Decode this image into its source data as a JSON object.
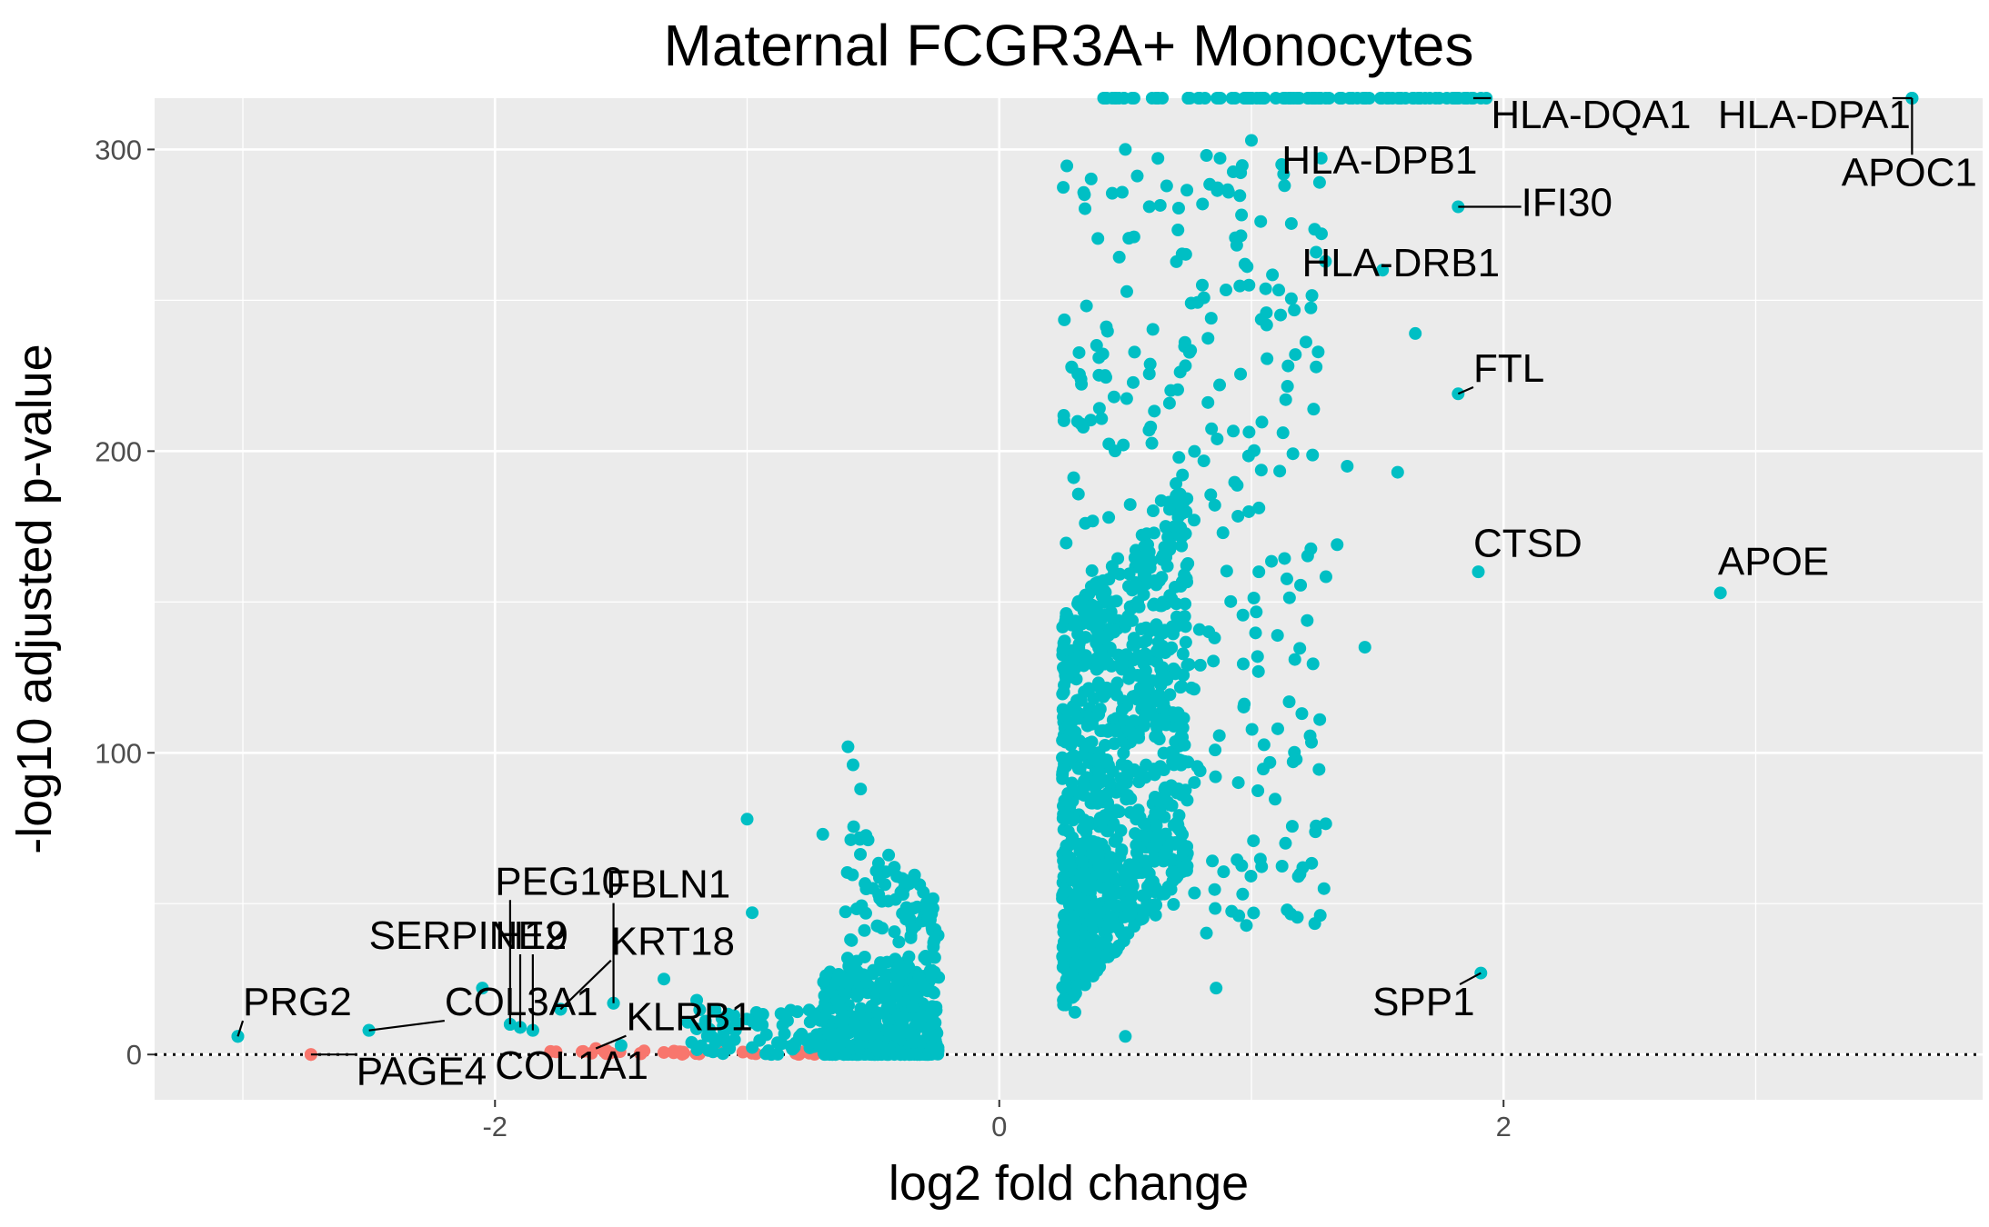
{
  "chart_data": {
    "type": "scatter",
    "title": "Maternal FCGR3A+ Monocytes",
    "xlabel": "log2 fold change",
    "ylabel": "-log10 adjusted p-value",
    "xlim": [
      -3.35,
      3.9
    ],
    "ylim": [
      -15,
      317
    ],
    "x_ticks": [
      -2,
      0,
      2
    ],
    "x_tick_labels": [
      "-2",
      "0",
      "2"
    ],
    "y_ticks": [
      0,
      100,
      200,
      300
    ],
    "y_tick_labels": [
      "0",
      "100",
      "200",
      "300"
    ],
    "grid": true,
    "legend": "none",
    "threshold_line": {
      "y": 0,
      "style": "dotted"
    },
    "colors": {
      "panel": "#ebebeb",
      "grid": "#ffffff",
      "significant": "#00bfc4",
      "not_significant": "#f8766d",
      "text": "#000000",
      "tick": "#4d4d4d"
    },
    "labeled_points": [
      {
        "gene": "HLA-DQA1",
        "x": 1.88,
        "y": 317,
        "label_x": 1.95,
        "label_y": 307
      },
      {
        "gene": "HLA-DPA1",
        "x": 3.62,
        "y": 317,
        "label_x": 2.85,
        "label_y": 307
      },
      {
        "gene": "APOC1",
        "x": 3.62,
        "y": 317,
        "label_x": 3.34,
        "label_y": 288
      },
      {
        "gene": "HLA-DPB1",
        "x": 1.12,
        "y": 295,
        "label_x": 1.12,
        "label_y": 292
      },
      {
        "gene": "IFI30",
        "x": 1.82,
        "y": 281,
        "label_x": 2.07,
        "label_y": 278
      },
      {
        "gene": "HLA-DRB1",
        "x": 1.52,
        "y": 260,
        "label_x": 1.2,
        "label_y": 258
      },
      {
        "gene": "FTL",
        "x": 1.82,
        "y": 219,
        "label_x": 1.88,
        "label_y": 223
      },
      {
        "gene": "CTSD",
        "x": 1.9,
        "y": 160,
        "label_x": 1.88,
        "label_y": 165
      },
      {
        "gene": "APOE",
        "x": 2.86,
        "y": 153,
        "label_x": 2.85,
        "label_y": 159
      },
      {
        "gene": "SPP1",
        "x": 1.91,
        "y": 27,
        "label_x": 1.48,
        "label_y": 13
      },
      {
        "gene": "PEG10",
        "x": -1.94,
        "y": 10,
        "label_x": -2.0,
        "label_y": 53
      },
      {
        "gene": "FBLN1",
        "x": -1.53,
        "y": 17,
        "label_x": -1.56,
        "label_y": 52
      },
      {
        "gene": "SERPINE2",
        "x": -1.85,
        "y": 8,
        "label_x": -2.5,
        "label_y": 35
      },
      {
        "gene": "H19",
        "x": -1.9,
        "y": 9,
        "label_x": -2.0,
        "label_y": 35
      },
      {
        "gene": "KRT18",
        "x": -1.74,
        "y": 15,
        "label_x": -1.54,
        "label_y": 33
      },
      {
        "gene": "PRG2",
        "x": -3.02,
        "y": 6,
        "label_x": -3.0,
        "label_y": 13
      },
      {
        "gene": "COL3A1",
        "x": -2.5,
        "y": 8,
        "label_x": -2.2,
        "label_y": 13
      },
      {
        "gene": "KLRB1",
        "x": -1.6,
        "y": 2,
        "label_x": -1.48,
        "label_y": 8
      },
      {
        "gene": "PAGE4",
        "x": -2.73,
        "y": 0,
        "label_x": -2.55,
        "label_y": -10
      },
      {
        "gene": "COL1A1",
        "x": -1.65,
        "y": 1,
        "label_x": -2.0,
        "label_y": -8
      }
    ],
    "seed_points": [
      {
        "x": -3.02,
        "y": 6
      },
      {
        "x": -2.5,
        "y": 8
      },
      {
        "x": -2.05,
        "y": 22
      },
      {
        "x": -1.94,
        "y": 10
      },
      {
        "x": -1.9,
        "y": 9
      },
      {
        "x": -1.85,
        "y": 8
      },
      {
        "x": -1.74,
        "y": 15
      },
      {
        "x": -1.53,
        "y": 17
      },
      {
        "x": -1.5,
        "y": 3
      },
      {
        "x": -1.33,
        "y": 25
      },
      {
        "x": -1.22,
        "y": 4
      },
      {
        "x": -1.2,
        "y": 18
      },
      {
        "x": -1.1,
        "y": 12
      },
      {
        "x": -1.0,
        "y": 78
      },
      {
        "x": -0.98,
        "y": 47
      },
      {
        "x": -0.7,
        "y": 73
      },
      {
        "x": -0.6,
        "y": 102
      },
      {
        "x": -0.58,
        "y": 96
      },
      {
        "x": -0.55,
        "y": 88
      },
      {
        "x": 0.5,
        "y": 300
      },
      {
        "x": 1.0,
        "y": 303
      },
      {
        "x": 1.65,
        "y": 239
      },
      {
        "x": 1.58,
        "y": 193
      },
      {
        "x": 1.38,
        "y": 195
      },
      {
        "x": 1.45,
        "y": 135
      },
      {
        "x": 1.34,
        "y": 169
      },
      {
        "x": 1.2,
        "y": 113
      },
      {
        "x": 0.95,
        "y": 46
      },
      {
        "x": 0.86,
        "y": 22
      },
      {
        "x": 0.5,
        "y": 6
      },
      {
        "x": 0.3,
        "y": 14
      }
    ]
  }
}
